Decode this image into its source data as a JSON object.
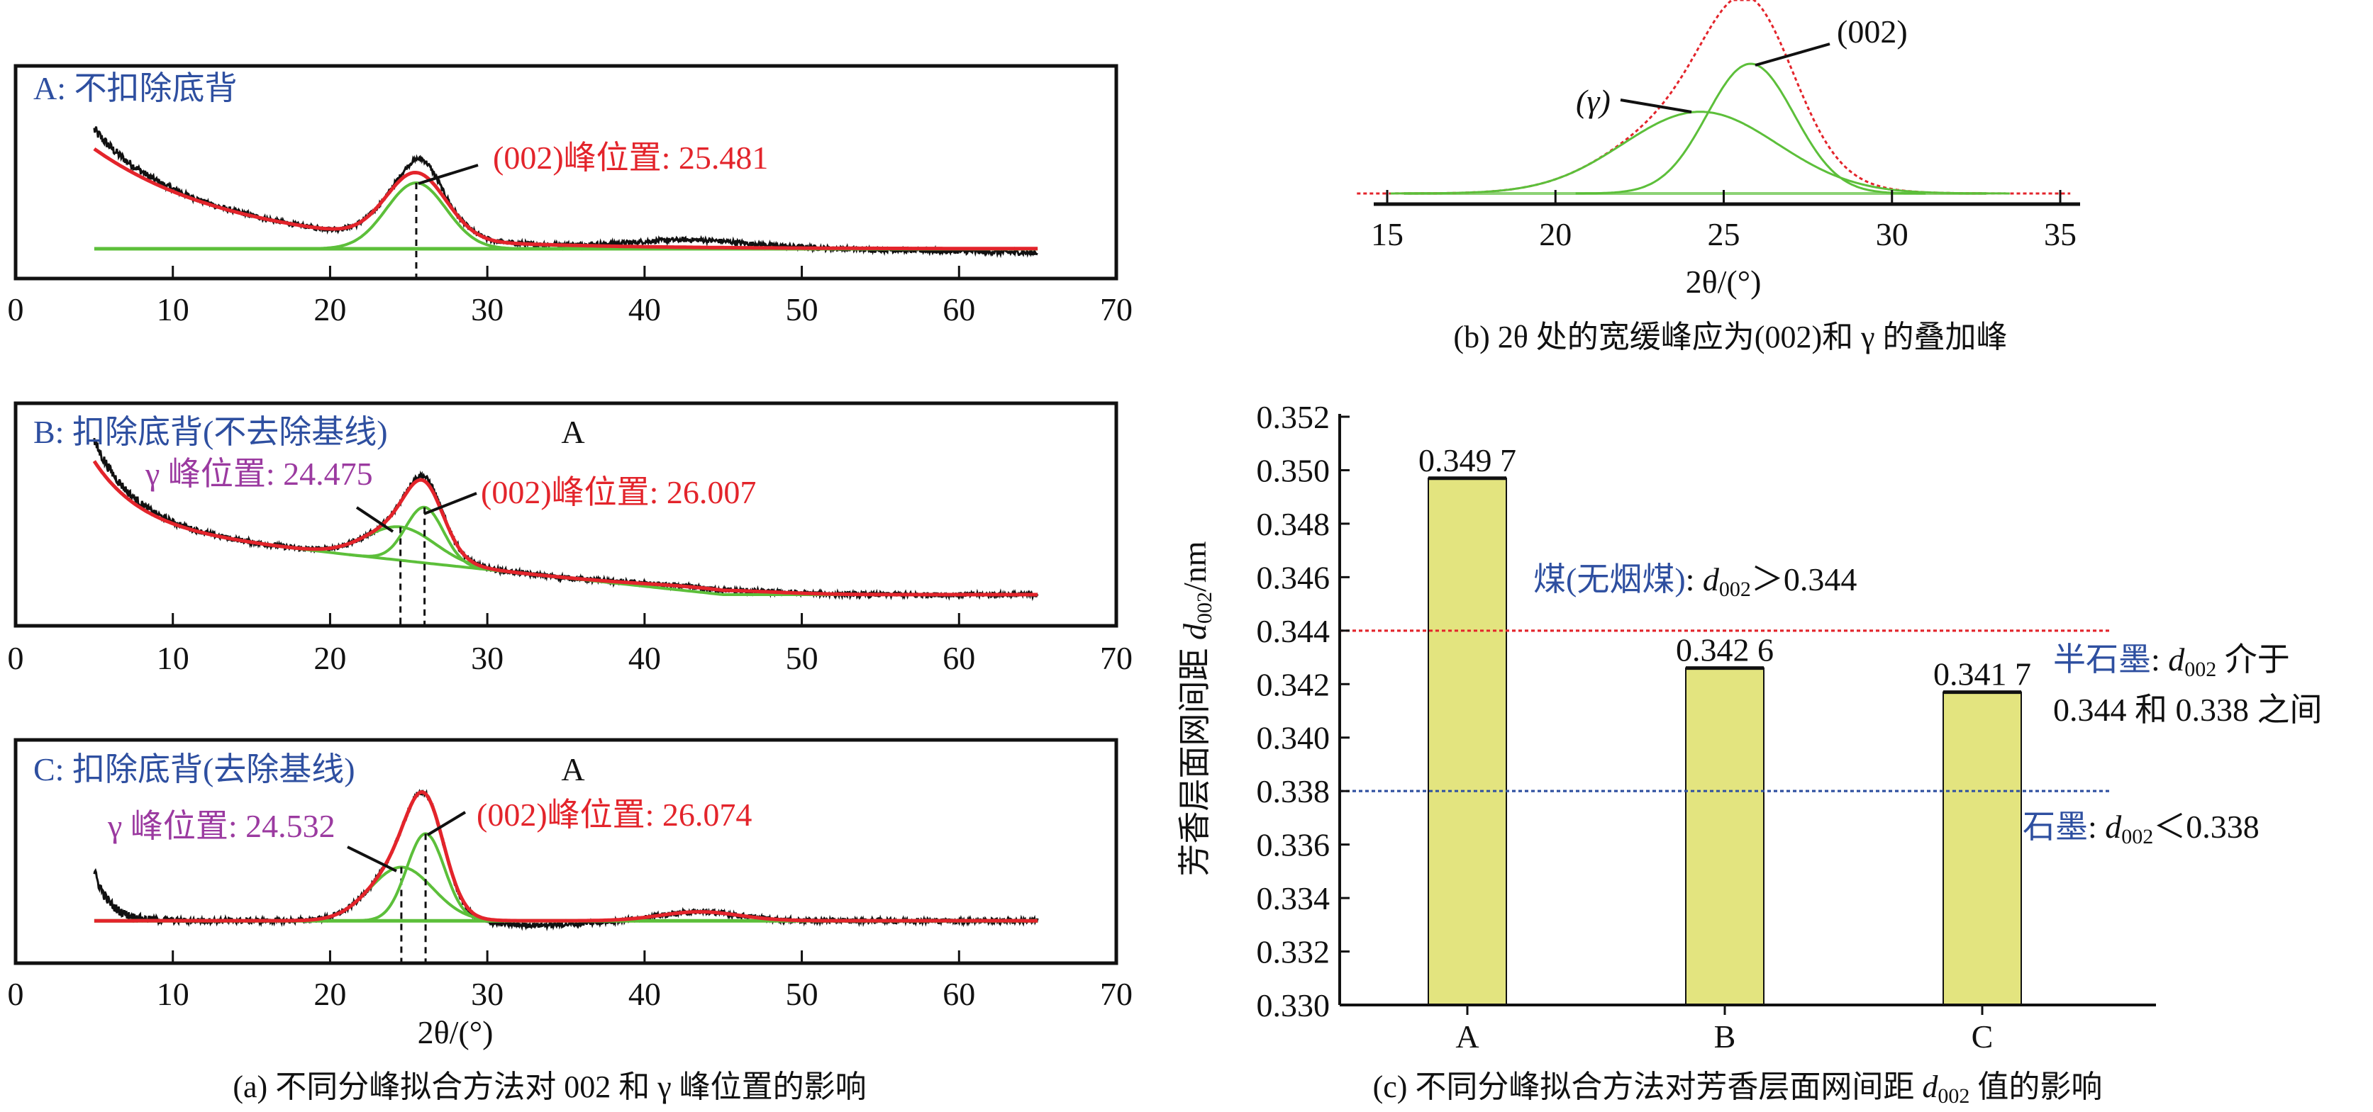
{
  "colors": {
    "measured": "#111111",
    "fit": "#e3242b",
    "component": "#5cbf3a",
    "baseline_blue": "#2e4fa0",
    "label_blue": "#2e4fa0",
    "label_red": "#e3242b",
    "label_purple": "#9b3aa0",
    "bar_fill": "#e3e47f",
    "ref_red": "#e3242b",
    "ref_blue": "#2e4fa0"
  },
  "chart_data": [
    {
      "id": "a",
      "type": "line",
      "caption": "(a) 不同分峰拟合方法对 002 和 γ 峰位置的影响",
      "xlabel": "2θ/(°)",
      "xlim": [
        0,
        70
      ],
      "xticks": [
        0,
        10,
        20,
        30,
        40,
        50,
        60,
        70
      ],
      "data_range": [
        5,
        65
      ],
      "panels": [
        {
          "label": "A: 不扣除底背",
          "marker": "",
          "offset": 0.14,
          "exp": {
            "amp": 0.47,
            "decay": 9
          },
          "linear": null,
          "peaks": [
            {
              "name": "(002)",
              "center": 25.481,
              "amp": 0.31,
              "width": 1.9
            }
          ],
          "bumps": [],
          "measured_exp": {
            "amp": 0.09,
            "decay": 2.5
          },
          "measured_extra": [
            {
              "center": 25.9,
              "amp": 0.07,
              "width": 0.9
            },
            {
              "center": 43,
              "amp": 0.035,
              "width": 3.5
            }
          ],
          "measured_tail": -0.02,
          "annotations": [
            {
              "text": "(002)峰位置: 25.481",
              "color": "label_red"
            }
          ]
        },
        {
          "label": "B: 扣除底背(不去除基线)",
          "marker": "A",
          "offset": 0.14,
          "exp": {
            "amp": 0.3,
            "decay": 3
          },
          "linear": {
            "amp": 0.3,
            "end": 45
          },
          "peaks": [
            {
              "name": "γ",
              "center": 24.475,
              "amp": 0.15,
              "width": 2.2
            },
            {
              "name": "(002)",
              "center": 26.007,
              "amp": 0.25,
              "width": 1.2
            }
          ],
          "bumps": [
            {
              "center": 44,
              "amp": 0.02,
              "width": 4
            }
          ],
          "measured_exp": {
            "amp": 0.09,
            "decay": 2
          },
          "measured_extra": [
            {
              "center": 26,
              "amp": 0.02,
              "width": 0.8
            }
          ],
          "measured_tail": 0,
          "annotations": [
            {
              "text": "γ 峰位置: 24.475",
              "color": "label_purple"
            },
            {
              "text": "(002)峰位置: 26.007",
              "color": "label_red"
            }
          ]
        },
        {
          "label": "C: 扣除底背(去除基线)",
          "marker": "A",
          "offset": 0.19,
          "exp": null,
          "linear": null,
          "peaks": [
            {
              "name": "γ",
              "center": 24.532,
              "amp": 0.24,
              "width": 2.0
            },
            {
              "name": "(002)",
              "center": 26.074,
              "amp": 0.39,
              "width": 1.2
            }
          ],
          "bumps": [
            {
              "center": 43.5,
              "amp": 0.04,
              "width": 2.5
            }
          ],
          "measured_exp": {
            "amp": 0.22,
            "decay": 1.0
          },
          "measured_extra": [
            {
              "center": 33,
              "amp": -0.02,
              "width": 3
            }
          ],
          "measured_tail": 0,
          "annotations": [
            {
              "text": "γ 峰位置: 24.532",
              "color": "label_purple"
            },
            {
              "text": "(002)峰位置: 26.074",
              "color": "label_red"
            }
          ]
        }
      ]
    },
    {
      "id": "b",
      "type": "line",
      "caption": "(b) 2θ 处的宽缓峰应为(002)和 γ 的叠加峰",
      "xlabel": "2θ/(°)",
      "xlim": [
        14.1,
        35.3
      ],
      "xticks": [
        15,
        20,
        25,
        30,
        35
      ],
      "peaks": [
        {
          "label": "(002)",
          "center": 25.8,
          "amp": 1.0,
          "width": 1.3
        },
        {
          "label": "(γ)",
          "center": 24.3,
          "amp": 0.63,
          "width": 2.3
        }
      ]
    },
    {
      "id": "c",
      "type": "bar",
      "caption_prefix": "(c) 不同分峰拟合方法对芳香层面网间距 ",
      "caption_var": "d",
      "caption_sub": "002",
      "caption_suffix": " 值的影响",
      "ylabel_text": "芳香层面网间距 ",
      "ylabel_var": "d",
      "ylabel_sub": "002",
      "ylabel_unit": "/nm",
      "categories": [
        "A",
        "B",
        "C"
      ],
      "values": [
        0.3497,
        0.3426,
        0.3417
      ],
      "value_labels": [
        "0.349 7",
        "0.342 6",
        "0.341 7"
      ],
      "ylim": [
        0.33,
        0.352
      ],
      "yticks": [
        0.33,
        0.332,
        0.334,
        0.336,
        0.338,
        0.34,
        0.342,
        0.344,
        0.346,
        0.348,
        0.35,
        0.352
      ],
      "reference_lines": [
        {
          "value": 0.344,
          "color": "ref_red"
        },
        {
          "value": 0.338,
          "color": "ref_blue"
        }
      ],
      "annotations": {
        "coal": {
          "name": "煤(无烟煤)",
          "sep": ": ",
          "var": "d",
          "sub": "002",
          "rest": "＞0.344"
        },
        "semi": {
          "name": "半石墨",
          "sep": ": ",
          "var": "d",
          "sub": "002",
          "rest": " 介于",
          "line2": "0.344 和 0.338 之间"
        },
        "graphite": {
          "name": "石墨",
          "sep": ": ",
          "var": "d",
          "sub": "002",
          "rest": "＜0.338"
        }
      }
    }
  ]
}
